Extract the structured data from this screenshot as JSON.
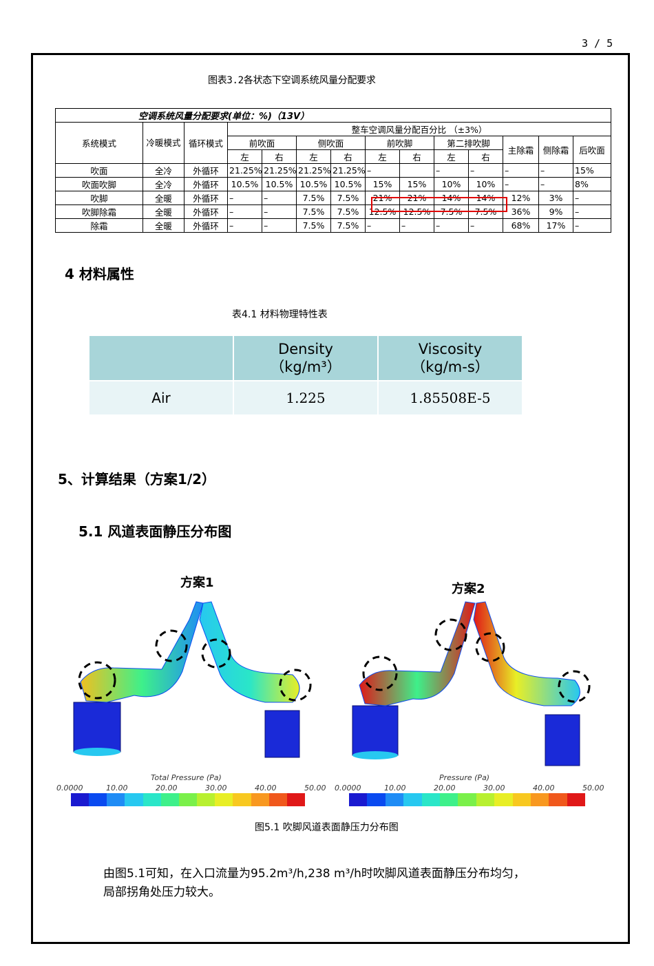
{
  "page_number": "3 / 5",
  "table32": {
    "caption": "图表3.2各状态下空调系统风量分配要求",
    "title": "空调系统风量分配要求(单位：%)（13V）",
    "col_mode": "系统模式",
    "col_hc": "冷暖模式",
    "col_circ": "循环模式",
    "group_title": "整车空调风量分配百分比  （±3%）",
    "groups": [
      "前吹面",
      "侧吹面",
      "前吹脚",
      "第二排吹脚"
    ],
    "lr": [
      "左",
      "右"
    ],
    "extra_cols": [
      "主除霜",
      "侧除霜",
      "后吹面"
    ],
    "rows": [
      [
        "吹面",
        "全冷",
        "外循环",
        "21.25%",
        "21.25%",
        "21.25%",
        "21.25%",
        "–",
        "",
        "–",
        "–",
        "–",
        "–",
        "15%"
      ],
      [
        "吹面吹脚",
        "全冷",
        "外循环",
        "10.5%",
        "10.5%",
        "10.5%",
        "10.5%",
        "15%",
        "15%",
        "10%",
        "10%",
        "–",
        "–",
        "8%"
      ],
      [
        "吹脚",
        "全暖",
        "外循环",
        "–",
        "–",
        "7.5%",
        "7.5%",
        "21%",
        "21%",
        "14%",
        "14%",
        "12%",
        "3%",
        "–"
      ],
      [
        "吹脚除霜",
        "全暖",
        "外循环",
        "–",
        "–",
        "7.5%",
        "7.5%",
        "12.5%",
        "12.5%",
        "7.5%",
        "7.5%",
        "36%",
        "9%",
        "–"
      ],
      [
        "除霜",
        "全暖",
        "外循环",
        "–",
        "–",
        "7.5%",
        "7.5%",
        "–",
        "–",
        "–",
        "–",
        "68%",
        "17%",
        "–"
      ]
    ]
  },
  "section4": {
    "heading": "4  材料属性",
    "caption": "表4.1  材料物理特性表",
    "header": [
      "",
      "Density\n（kg/m³）",
      "Viscosity\n（kg/m-s）"
    ],
    "row": [
      "Air",
      "1.225",
      "1.85508E-5"
    ]
  },
  "section5": {
    "heading": "5、计算结果（方案1/2）",
    "sub_heading": "5.1 风道表面静压分布图",
    "plan1": "方案1",
    "plan2": "方案2",
    "legend1_title": "Total Pressure (Pa)",
    "legend2_title": "Pressure (Pa)",
    "ticks": [
      "0.0000",
      "10.00",
      "20.00",
      "30.00",
      "40.00",
      "50.00"
    ],
    "colormap": [
      "#1a1ad0",
      "#0a4af0",
      "#1f8cf5",
      "#27c8f0",
      "#2ae6c8",
      "#3ef08a",
      "#7af04a",
      "#b8f030",
      "#e8ee26",
      "#f8c820",
      "#f89820",
      "#f0581c",
      "#e01818"
    ],
    "figure_caption": "图5.1 吹脚风道表面静压力分布图",
    "para_line1": "由图5.1可知，在入口流量为95.2m³/h,238 m³/h时吹脚风道表面静压分布均匀，",
    "para_line2": "局部拐角处压力较大。"
  }
}
